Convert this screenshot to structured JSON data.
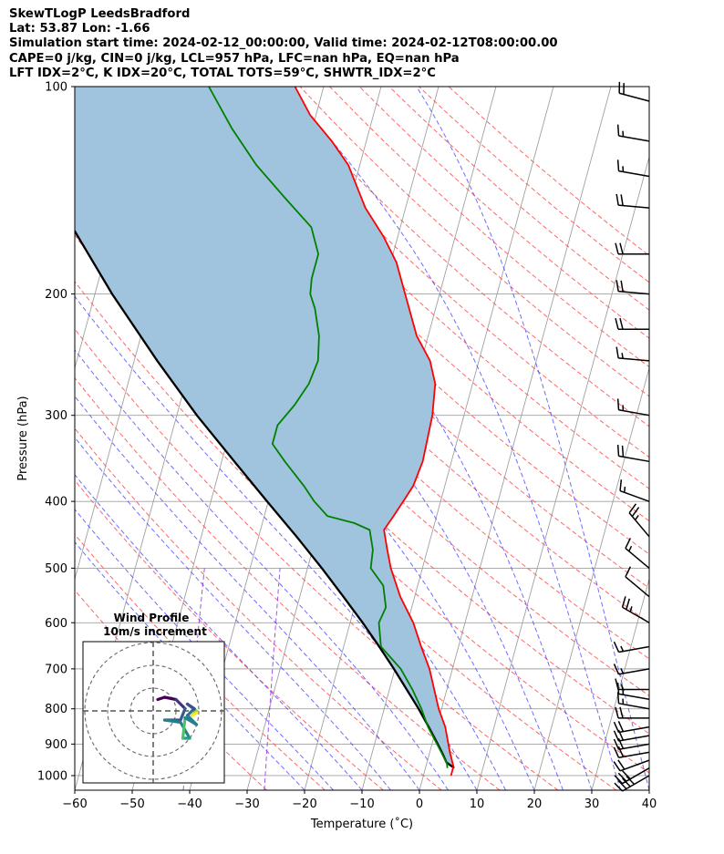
{
  "header": {
    "title": "SkewTLogP LeedsBradford",
    "location": "Lat: 53.87   Lon: -1.66",
    "times": "Simulation start time: 2024-02-12_00:00:00, Valid time: 2024-02-12T08:00:00.00",
    "indices1": "CAPE=0 j/kg, CIN=0 j/kg, LCL=957 hPa, LFC=nan hPa, EQ=nan hPa",
    "indices2": "LFT IDX=2°C, K IDX=20°C, TOTAL TOTS=59°C, SHWTR_IDX=2°C"
  },
  "chart_data": [
    {
      "type": "line",
      "subtype": "skew-t log-p",
      "xlabel": "Temperature (˚C)",
      "ylabel": "Pressure (hPa)",
      "x_range": [
        -60,
        40
      ],
      "y_range": [
        1050,
        100
      ],
      "y_scale": "log",
      "x_ticks": [
        "−60",
        "−50",
        "−40",
        "−30",
        "−20",
        "−10",
        "0",
        "10",
        "20",
        "30",
        "40"
      ],
      "y_ticks": [
        "100",
        "200",
        "300",
        "400",
        "500",
        "600",
        "700",
        "800",
        "900",
        "1000"
      ],
      "grid": true,
      "series": [
        {
          "role": "temperature",
          "color": "#ff0000",
          "points": [
            [
              1000,
              4.8
            ],
            [
              970,
              4.8
            ],
            [
              925,
              3.5
            ],
            [
              850,
              1.5
            ],
            [
              800,
              -0.5
            ],
            [
              700,
              -4.0
            ],
            [
              650,
              -6.5
            ],
            [
              600,
              -9.0
            ],
            [
              550,
              -12.5
            ],
            [
              500,
              -15.5
            ],
            [
              470,
              -17.0
            ],
            [
              440,
              -18.5
            ],
            [
              420,
              -17.5
            ],
            [
              400,
              -16.5
            ],
            [
              380,
              -15.5
            ],
            [
              350,
              -15.0
            ],
            [
              300,
              -15.5
            ],
            [
              270,
              -16.5
            ],
            [
              250,
              -18.5
            ],
            [
              230,
              -22.0
            ],
            [
              200,
              -26.0
            ],
            [
              180,
              -29.0
            ],
            [
              165,
              -32.5
            ],
            [
              150,
              -37.0
            ],
            [
              130,
              -42.0
            ],
            [
              120,
              -46.0
            ],
            [
              110,
              -51.0
            ],
            [
              100,
              -55.0
            ]
          ]
        },
        {
          "role": "dewpoint",
          "color": "#008000",
          "points": [
            [
              975,
              3.8
            ],
            [
              960,
              3.5
            ],
            [
              925,
              2.0
            ],
            [
              850,
              -1.5
            ],
            [
              800,
              -3.5
            ],
            [
              750,
              -6.0
            ],
            [
              700,
              -9.0
            ],
            [
              650,
              -13.5
            ],
            [
              600,
              -15.0
            ],
            [
              570,
              -14.5
            ],
            [
              530,
              -16.0
            ],
            [
              500,
              -19.0
            ],
            [
              470,
              -19.5
            ],
            [
              440,
              -21.0
            ],
            [
              430,
              -24.0
            ],
            [
              420,
              -29.0
            ],
            [
              400,
              -32.0
            ],
            [
              380,
              -34.5
            ],
            [
              350,
              -39.0
            ],
            [
              330,
              -42.0
            ],
            [
              310,
              -42.0
            ],
            [
              290,
              -40.0
            ],
            [
              270,
              -38.5
            ],
            [
              250,
              -38.0
            ],
            [
              230,
              -39.0
            ],
            [
              210,
              -41.0
            ],
            [
              200,
              -42.5
            ],
            [
              190,
              -43.0
            ],
            [
              175,
              -43.0
            ],
            [
              160,
              -45.5
            ],
            [
              145,
              -51.5
            ],
            [
              130,
              -58.0
            ],
            [
              115,
              -64.0
            ],
            [
              100,
              -70.0
            ]
          ]
        },
        {
          "role": "parcel",
          "color": "#000000",
          "points": [
            [
              975,
              5.0
            ],
            [
              957,
              3.4
            ],
            [
              925,
              2.1
            ],
            [
              900,
              1.0
            ],
            [
              850,
              -1.4
            ],
            [
              800,
              -4.0
            ],
            [
              750,
              -7.0
            ],
            [
              700,
              -10.2
            ],
            [
              650,
              -13.8
            ],
            [
              600,
              -17.8
            ],
            [
              550,
              -22.4
            ],
            [
              500,
              -27.5
            ],
            [
              450,
              -33.4
            ],
            [
              400,
              -40.2
            ],
            [
              350,
              -47.8
            ],
            [
              300,
              -56.5
            ],
            [
              250,
              -66.0
            ],
            [
              200,
              -77.0
            ],
            [
              150,
              -90.0
            ],
            [
              100,
              -106.0
            ]
          ]
        }
      ],
      "cape_cin_fill_color": "#a0c4de"
    },
    {
      "type": "line",
      "subtype": "hodograph",
      "title": "Wind Profile",
      "subtitle": "10m/s increment",
      "ring_increment": 10
    }
  ],
  "colors": {
    "dry_adiabat": "#ff4b4b",
    "moist_adiabat": "#3c3cff",
    "mixing_ratio": "#8a2be2",
    "isotherm": "#a0a0a0",
    "isobar": "#a0a0a0",
    "wind_barb": "#000000"
  },
  "wind_barbs": [
    {
      "p": 1000,
      "ws": 40,
      "dir": 240
    },
    {
      "p": 975,
      "ws": 30,
      "dir": 240
    },
    {
      "p": 950,
      "ws": 20,
      "dir": 250
    },
    {
      "p": 925,
      "ws": 20,
      "dir": 260
    },
    {
      "p": 900,
      "ws": 20,
      "dir": 260
    },
    {
      "p": 875,
      "ws": 20,
      "dir": 260
    },
    {
      "p": 850,
      "ws": 20,
      "dir": 260
    },
    {
      "p": 825,
      "ws": 20,
      "dir": 270
    },
    {
      "p": 800,
      "ws": 15,
      "dir": 280
    },
    {
      "p": 775,
      "ws": 15,
      "dir": 280
    },
    {
      "p": 750,
      "ws": 15,
      "dir": 270
    },
    {
      "p": 700,
      "ws": 15,
      "dir": 260
    },
    {
      "p": 650,
      "ws": 15,
      "dir": 260
    },
    {
      "p": 600,
      "ws": 25,
      "dir": 300
    },
    {
      "p": 550,
      "ws": 10,
      "dir": 310
    },
    {
      "p": 500,
      "ws": 15,
      "dir": 310
    },
    {
      "p": 450,
      "ws": 25,
      "dir": 320
    },
    {
      "p": 400,
      "ws": 15,
      "dir": 290
    },
    {
      "p": 350,
      "ws": 20,
      "dir": 280
    },
    {
      "p": 300,
      "ws": 15,
      "dir": 280
    },
    {
      "p": 250,
      "ws": 15,
      "dir": 275
    },
    {
      "p": 225,
      "ws": 20,
      "dir": 270
    },
    {
      "p": 200,
      "ws": 20,
      "dir": 275
    },
    {
      "p": 175,
      "ws": 20,
      "dir": 270
    },
    {
      "p": 150,
      "ws": 20,
      "dir": 275
    },
    {
      "p": 135,
      "ws": 15,
      "dir": 280
    },
    {
      "p": 120,
      "ws": 15,
      "dir": 280
    },
    {
      "p": 105,
      "ws": 20,
      "dir": 285
    }
  ],
  "hodograph_points": [
    {
      "u": 2,
      "v": 5,
      "c": "#440154"
    },
    {
      "u": 5,
      "v": 6,
      "c": "#440154"
    },
    {
      "u": 10,
      "v": 5,
      "c": "#46327e"
    },
    {
      "u": 14,
      "v": 1,
      "c": "#365c8d"
    },
    {
      "u": 12,
      "v": -4,
      "c": "#365c8d"
    },
    {
      "u": 5,
      "v": -4,
      "c": "#277f8e"
    },
    {
      "u": 12,
      "v": -5,
      "c": "#277f8e"
    },
    {
      "u": 16,
      "v": -12,
      "c": "#1fa187"
    },
    {
      "u": 13,
      "v": -12,
      "c": "#4ac16d"
    },
    {
      "u": 14,
      "v": -3,
      "c": "#277f8e"
    },
    {
      "u": 19,
      "v": -6,
      "c": "#277f8e"
    },
    {
      "u": 15,
      "v": -2,
      "c": "#2c728e"
    },
    {
      "u": 18,
      "v": 1,
      "c": "#365c8d"
    },
    {
      "u": 15,
      "v": 3,
      "c": "#3b528b"
    },
    {
      "u": 19,
      "v": 0,
      "c": "#a0da39"
    },
    {
      "u": 17,
      "v": -2,
      "c": "#fde725"
    },
    {
      "u": 19,
      "v": -1,
      "c": "#1fa187"
    }
  ]
}
